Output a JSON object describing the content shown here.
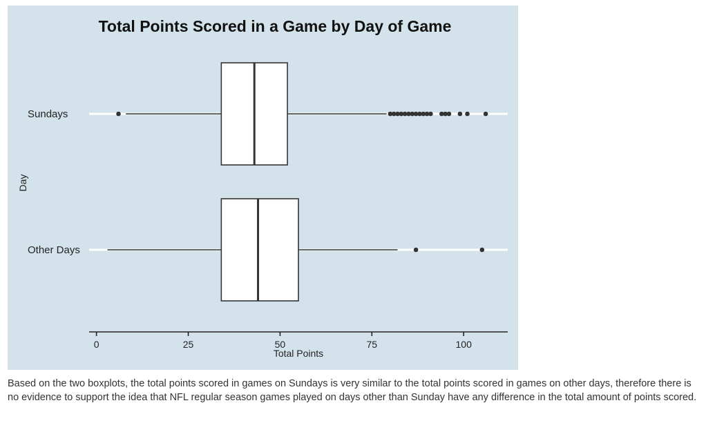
{
  "chart_data": {
    "type": "boxplot",
    "title": "Total Points Scored in a Game by Day of Game",
    "xlabel": "Total Points",
    "ylabel": "Day",
    "xlim": [
      -2,
      112
    ],
    "xticks": [
      0,
      25,
      50,
      75,
      100
    ],
    "xtick_labels": [
      "0",
      "25",
      "50",
      "75",
      "100"
    ],
    "orientation": "horizontal",
    "grid": "horizontal lines at each category",
    "colors": {
      "background": "#d4e3eb",
      "box_fill": "#ffffff",
      "stroke": "#333333",
      "outlier": "#333333",
      "grid": "#ffffff"
    },
    "groups": [
      {
        "label": "Sundays",
        "whisker_low": 8,
        "q1": 34,
        "median": 43,
        "q3": 52,
        "whisker_high": 79,
        "outliers": [
          6,
          80,
          81,
          82,
          83,
          84,
          85,
          86,
          87,
          88,
          89,
          90,
          91,
          94,
          95,
          96,
          99,
          101,
          106
        ]
      },
      {
        "label": "Other Days",
        "whisker_low": 3,
        "q1": 34,
        "median": 44,
        "q3": 55,
        "whisker_high": 82,
        "outliers": [
          87,
          105
        ]
      }
    ]
  },
  "caption": "Based on the two boxplots, the total points scored in games on Sundays is very similar to the total points scored in games on other days, therefore there is no evidence to support the idea that NFL regular season games played on days other than Sunday have any difference in the total amount of points scored."
}
